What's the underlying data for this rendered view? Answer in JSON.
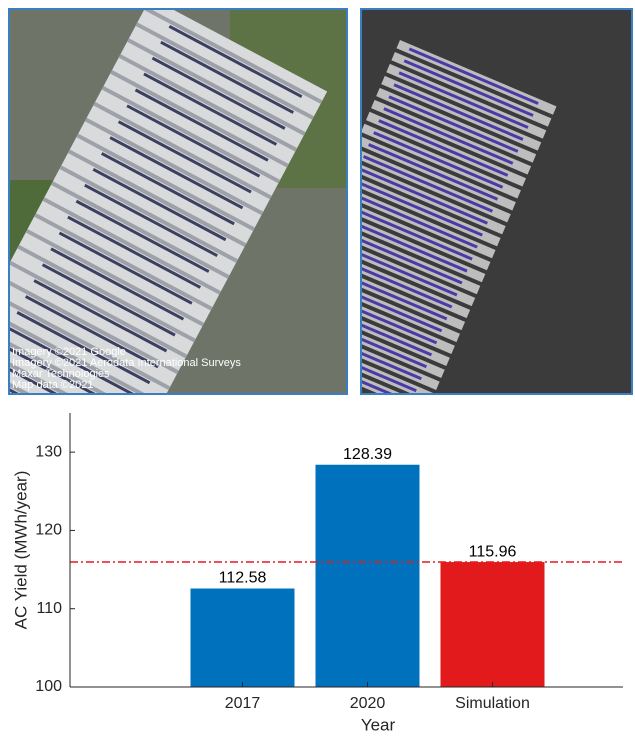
{
  "photo_credits": [
    "Imagery ©2021 Google",
    "Imagery ©2021 Aerodata International Surveys",
    "Maxar Technologies",
    "Map data ©2021"
  ],
  "chart_data": {
    "type": "bar",
    "y_label": "AC Yield (MWh/year)",
    "x_label": "Year",
    "categories": [
      "2017",
      "2020",
      "Simulation"
    ],
    "values": [
      112.58,
      128.39,
      115.96
    ],
    "colors": [
      "#0072bd",
      "#0072bd",
      "#e31a1c"
    ],
    "ylim": [
      100,
      135
    ],
    "yticks": [
      100,
      110,
      120,
      130
    ],
    "reference_line": {
      "value": 115.96,
      "color": "#e31a1c"
    }
  }
}
